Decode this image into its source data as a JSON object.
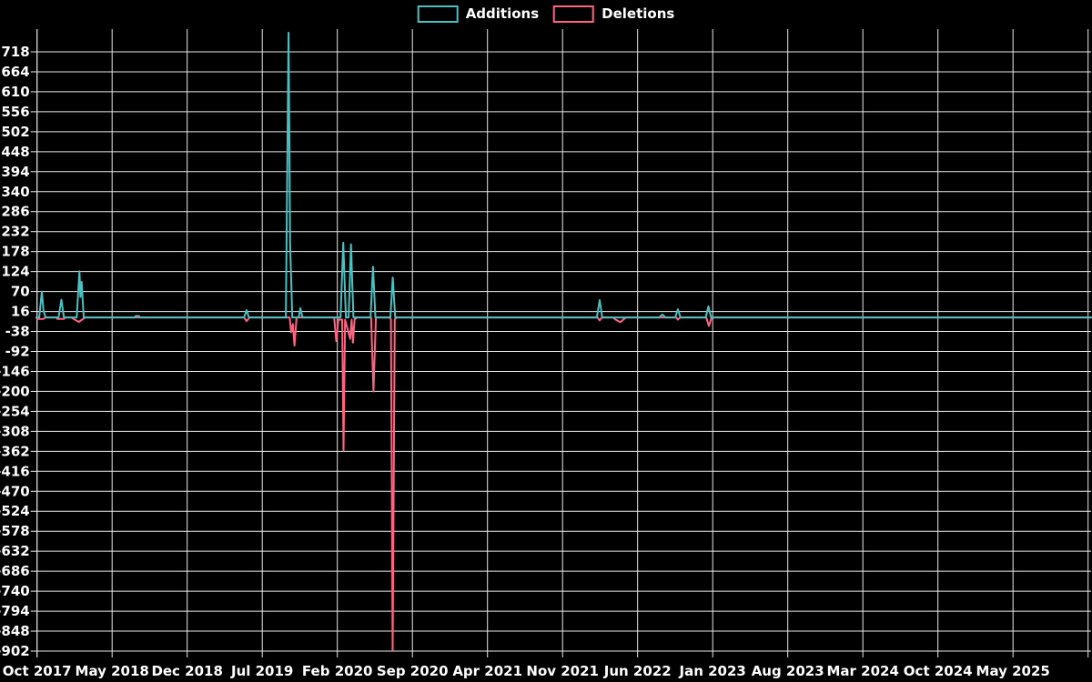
{
  "chart_data": {
    "type": "line",
    "title": "",
    "legend_position": "top-center",
    "grid": true,
    "background_color": "#000000",
    "gridline_color": "#e9e9e9",
    "text_color": "#ffffff",
    "x_encoding": "fractional months after Oct 2017",
    "x_axis": {
      "tick_labels": [
        "Oct 2017",
        "May 2018",
        "Dec 2018",
        "Jul 2019",
        "Feb 2020",
        "Sep 2020",
        "Apr 2021",
        "Nov 2021",
        "Jun 2022",
        "Jan 2023",
        "Aug 2023",
        "Mar 2024",
        "Oct 2024",
        "May 2025"
      ],
      "months_per_tick": 7,
      "extra_unlabeled_gridlines": 1
    },
    "y_axis": {
      "ticks": [
        718,
        664,
        610,
        556,
        502,
        448,
        394,
        340,
        286,
        232,
        178,
        124,
        70,
        16,
        -38,
        -92,
        -146,
        -200,
        -254,
        -308,
        -362,
        -416,
        -470,
        -524,
        -578,
        -632,
        -686,
        -740,
        -794,
        -848,
        -902
      ],
      "ylim": [
        -902,
        780
      ]
    },
    "series": [
      {
        "name": "Deletions",
        "color": "#FF6384",
        "points": [
          [
            -0.06,
            0
          ],
          [
            0.0,
            -4
          ],
          [
            0.6,
            -4
          ],
          [
            0.75,
            0
          ],
          [
            1.8,
            0
          ],
          [
            1.9,
            -4
          ],
          [
            2.5,
            -4
          ],
          [
            2.6,
            0
          ],
          [
            3.2,
            0
          ],
          [
            3.4,
            -4
          ],
          [
            3.9,
            -12
          ],
          [
            4.3,
            -4
          ],
          [
            4.5,
            0
          ],
          [
            19.3,
            0
          ],
          [
            19.54,
            -10
          ],
          [
            19.8,
            0
          ],
          [
            23.55,
            0
          ],
          [
            23.7,
            -40
          ],
          [
            23.85,
            -18
          ],
          [
            24.0,
            -76
          ],
          [
            24.2,
            0
          ],
          [
            27.7,
            0
          ],
          [
            27.9,
            -64
          ],
          [
            28.1,
            -6
          ],
          [
            28.45,
            -6
          ],
          [
            28.58,
            -360
          ],
          [
            28.72,
            -6
          ],
          [
            29.2,
            -58
          ],
          [
            29.33,
            -6
          ],
          [
            29.46,
            -68
          ],
          [
            29.6,
            -6
          ],
          [
            29.8,
            0
          ],
          [
            31.15,
            0
          ],
          [
            31.37,
            -200
          ],
          [
            31.6,
            0
          ],
          [
            32.9,
            0
          ],
          [
            33.0,
            -6
          ],
          [
            33.16,
            -902
          ],
          [
            33.35,
            -6
          ],
          [
            33.5,
            0
          ],
          [
            52.25,
            0
          ],
          [
            52.46,
            -8
          ],
          [
            52.65,
            0
          ],
          [
            53.7,
            0
          ],
          [
            53.9,
            -5
          ],
          [
            54.38,
            -13
          ],
          [
            54.7,
            -5
          ],
          [
            54.9,
            0
          ],
          [
            59.6,
            0
          ],
          [
            59.75,
            -6
          ],
          [
            59.95,
            0
          ],
          [
            62.4,
            0
          ],
          [
            62.64,
            -23
          ],
          [
            62.9,
            0
          ],
          [
            98.3,
            0
          ]
        ]
      },
      {
        "name": "Additions",
        "color": "#4BC0C0",
        "points": [
          [
            -0.06,
            0
          ],
          [
            0.2,
            0
          ],
          [
            0.45,
            70
          ],
          [
            0.6,
            18
          ],
          [
            0.8,
            0
          ],
          [
            2.0,
            0
          ],
          [
            2.27,
            48
          ],
          [
            2.5,
            0
          ],
          [
            3.7,
            0
          ],
          [
            3.95,
            125
          ],
          [
            4.05,
            55
          ],
          [
            4.16,
            96
          ],
          [
            4.35,
            0
          ],
          [
            9.1,
            0
          ],
          [
            9.2,
            4
          ],
          [
            9.5,
            4
          ],
          [
            9.6,
            0
          ],
          [
            19.3,
            0
          ],
          [
            19.54,
            20
          ],
          [
            19.75,
            0
          ],
          [
            23.2,
            0
          ],
          [
            23.45,
            770
          ],
          [
            23.6,
            200
          ],
          [
            23.8,
            0
          ],
          [
            24.4,
            0
          ],
          [
            24.55,
            25
          ],
          [
            24.75,
            0
          ],
          [
            28.3,
            0
          ],
          [
            28.55,
            202
          ],
          [
            28.8,
            0
          ],
          [
            29.05,
            0
          ],
          [
            29.27,
            198
          ],
          [
            29.5,
            0
          ],
          [
            31.1,
            0
          ],
          [
            31.33,
            137
          ],
          [
            31.55,
            0
          ],
          [
            32.95,
            0
          ],
          [
            33.17,
            108
          ],
          [
            33.4,
            0
          ],
          [
            52.2,
            0
          ],
          [
            52.46,
            47
          ],
          [
            52.7,
            0
          ],
          [
            58.0,
            0
          ],
          [
            58.3,
            8
          ],
          [
            58.6,
            0
          ],
          [
            59.5,
            0
          ],
          [
            59.75,
            22
          ],
          [
            60.0,
            0
          ],
          [
            62.35,
            0
          ],
          [
            62.6,
            30
          ],
          [
            62.85,
            0
          ],
          [
            98.3,
            0
          ]
        ]
      }
    ]
  },
  "legend": {
    "additions_label": "Additions",
    "deletions_label": "Deletions"
  }
}
